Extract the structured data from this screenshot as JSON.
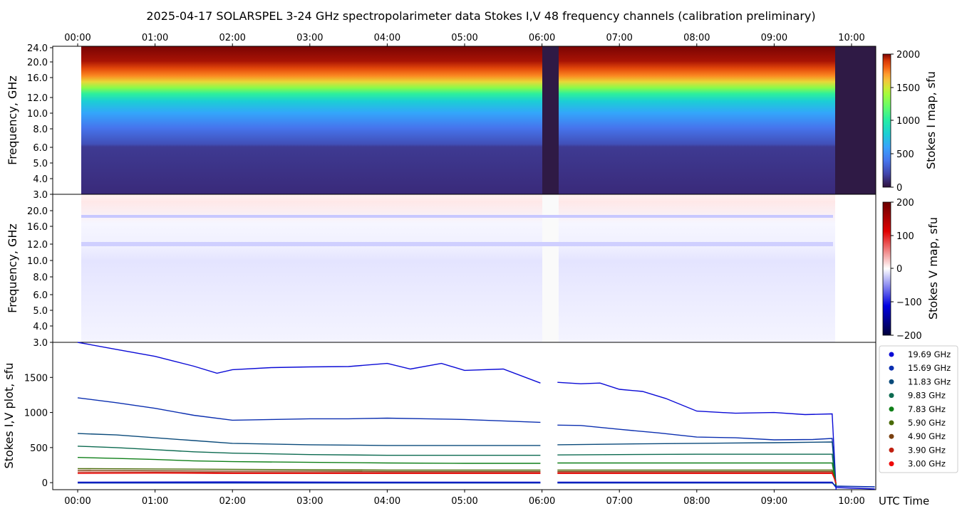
{
  "title": "2025-04-17  SOLARSPEL  3-24 GHz spectropolarimeter data   Stokes I,V   48 frequency channels   (calibration preliminary)",
  "time_ticks": [
    "00:00",
    "01:00",
    "02:00",
    "03:00",
    "04:00",
    "05:00",
    "06:00",
    "07:00",
    "08:00",
    "09:00",
    "10:00"
  ],
  "x_axis_label": "UTC Time",
  "panels": {
    "stokes_i": {
      "ylabel": "Frequency, GHz",
      "yticks": [
        "24.0",
        "20.0",
        "16.0",
        "12.0",
        "10.0",
        "8.0",
        "6.0",
        "5.0",
        "4.0",
        "3.0"
      ],
      "colorbar_label": "Stokes I map, sfu",
      "colorbar_ticks": [
        "2000",
        "1500",
        "1000",
        "500",
        "0"
      ]
    },
    "stokes_v": {
      "ylabel": "Frequency, GHz",
      "yticks": [
        "20.0",
        "16.0",
        "12.0",
        "10.0",
        "8.0",
        "6.0",
        "5.0",
        "4.0",
        "3.0"
      ],
      "colorbar_label": "Stokes V map, sfu",
      "colorbar_ticks": [
        "200",
        "100",
        "0",
        "−100",
        "−200"
      ]
    },
    "plot": {
      "ylabel": "Stokes I,V plot, sfu",
      "yticks": [
        "1500",
        "1000",
        "500",
        "0"
      ]
    }
  },
  "legend": [
    {
      "label": "19.69 GHz",
      "color": "#0a0ad6"
    },
    {
      "label": "15.69 GHz",
      "color": "#0b2fb0"
    },
    {
      "label": "11.83 GHz",
      "color": "#0a4a7a"
    },
    {
      "label": "9.83 GHz",
      "color": "#0c6a50"
    },
    {
      "label": "7.83 GHz",
      "color": "#0f7f18"
    },
    {
      "label": "5.90 GHz",
      "color": "#4a6a08"
    },
    {
      "label": "4.90 GHz",
      "color": "#7a4010"
    },
    {
      "label": "3.90 GHz",
      "color": "#c02010"
    },
    {
      "label": "3.00 GHz",
      "color": "#ee0a0a"
    }
  ],
  "chart_data": [
    {
      "type": "heatmap",
      "name": "Stokes I",
      "colorbar": "Stokes I map, sfu",
      "zlim": [
        0,
        2000
      ],
      "ylim_ghz": [
        3.0,
        24.0
      ],
      "xlim_hours": [
        0.0,
        10.3
      ],
      "data_start_hours": 0.04,
      "data_end_hours": 9.8,
      "gaps_hours": [
        [
          5.98,
          6.2
        ],
        [
          9.8,
          10.3
        ]
      ]
    },
    {
      "type": "heatmap",
      "name": "Stokes V",
      "colorbar": "Stokes V map, sfu",
      "zlim": [
        -200,
        200
      ],
      "ylim_ghz": [
        3.0,
        22.0
      ],
      "xlim_hours": [
        0.0,
        10.3
      ]
    },
    {
      "type": "line",
      "ylabel": "Stokes I,V plot, sfu",
      "ylim": [
        -100,
        2000
      ],
      "xlim_hours": [
        0.0,
        10.3
      ],
      "series": [
        {
          "name": "19.69 GHz",
          "color": "#0a0ad6",
          "x": [
            0.0,
            0.5,
            1.0,
            1.5,
            1.8,
            2.0,
            2.5,
            3.0,
            3.5,
            4.0,
            4.3,
            4.7,
            5.0,
            5.5,
            5.98,
            6.2,
            6.5,
            6.75,
            7.0,
            7.3,
            7.6,
            8.0,
            8.5,
            9.0,
            9.4,
            9.75,
            9.8
          ],
          "y": [
            2000,
            1900,
            1800,
            1660,
            1560,
            1610,
            1640,
            1650,
            1655,
            1700,
            1620,
            1700,
            1600,
            1620,
            1420,
            1430,
            1410,
            1420,
            1330,
            1300,
            1200,
            1020,
            990,
            1000,
            970,
            980,
            -100
          ]
        },
        {
          "name": "15.69 GHz",
          "color": "#0b2fb0",
          "x": [
            0.0,
            0.5,
            1.0,
            1.5,
            2.0,
            2.5,
            3.0,
            3.5,
            4.0,
            4.5,
            5.0,
            5.5,
            5.98,
            6.2,
            6.5,
            7.0,
            7.5,
            8.0,
            8.5,
            9.0,
            9.5,
            9.75,
            9.8
          ],
          "y": [
            1210,
            1140,
            1060,
            960,
            890,
            900,
            910,
            910,
            920,
            910,
            900,
            880,
            860,
            820,
            815,
            760,
            710,
            650,
            640,
            610,
            615,
            630,
            -80
          ]
        },
        {
          "name": "11.83 GHz",
          "color": "#0a4a7a",
          "x": [
            0.0,
            0.5,
            1.0,
            1.5,
            2.0,
            3.0,
            4.0,
            5.0,
            5.98,
            6.2,
            7.0,
            8.0,
            9.0,
            9.75,
            9.8
          ],
          "y": [
            700,
            680,
            640,
            600,
            560,
            540,
            530,
            530,
            530,
            540,
            550,
            560,
            570,
            580,
            -60
          ]
        },
        {
          "name": "9.83 GHz",
          "color": "#0c6a50",
          "x": [
            0.0,
            0.5,
            1.0,
            1.5,
            2.0,
            3.0,
            4.0,
            5.0,
            5.98,
            6.2,
            7.0,
            8.0,
            9.0,
            9.75,
            9.8
          ],
          "y": [
            520,
            500,
            470,
            440,
            420,
            400,
            390,
            390,
            390,
            395,
            400,
            405,
            405,
            405,
            -60
          ]
        },
        {
          "name": "7.83 GHz",
          "color": "#0f7f18",
          "x": [
            0.0,
            0.5,
            1.0,
            1.5,
            2.0,
            3.0,
            4.0,
            5.0,
            5.98,
            6.2,
            7.0,
            8.0,
            9.0,
            9.75,
            9.8
          ],
          "y": [
            360,
            345,
            330,
            310,
            300,
            290,
            280,
            275,
            275,
            280,
            280,
            280,
            280,
            280,
            -40
          ]
        },
        {
          "name": "5.90 GHz",
          "color": "#4a6a08",
          "x": [
            0.0,
            1.0,
            2.0,
            3.0,
            4.0,
            5.0,
            5.98,
            6.2,
            7.0,
            8.0,
            9.0,
            9.75,
            9.8
          ],
          "y": [
            200,
            195,
            190,
            185,
            180,
            180,
            180,
            180,
            180,
            180,
            180,
            180,
            -30
          ]
        },
        {
          "name": "4.90 GHz",
          "color": "#7a4010",
          "x": [
            0.0,
            1.0,
            2.0,
            3.0,
            4.0,
            5.0,
            5.98,
            6.2,
            7.0,
            8.0,
            9.0,
            9.75,
            9.8
          ],
          "y": [
            175,
            170,
            165,
            165,
            160,
            160,
            160,
            160,
            160,
            160,
            160,
            160,
            -20
          ]
        },
        {
          "name": "3.90 GHz",
          "color": "#c02010",
          "x": [
            0.0,
            1.0,
            2.0,
            3.0,
            4.0,
            5.0,
            5.98,
            6.2,
            7.0,
            8.0,
            9.0,
            9.75,
            9.8
          ],
          "y": [
            150,
            150,
            145,
            145,
            145,
            145,
            145,
            145,
            145,
            145,
            145,
            145,
            -10
          ]
        },
        {
          "name": "3.00 GHz",
          "color": "#ee0a0a",
          "x": [
            0.0,
            1.0,
            2.0,
            3.0,
            4.0,
            5.0,
            5.98,
            6.2,
            7.0,
            8.0,
            9.0,
            9.75,
            9.8
          ],
          "y": [
            130,
            135,
            130,
            130,
            130,
            130,
            130,
            130,
            130,
            130,
            130,
            130,
            0
          ]
        },
        {
          "color": "#0a0ad6",
          "x": [
            0.0,
            2.0,
            4.0,
            5.98,
            6.2,
            8.0,
            9.75,
            9.8,
            10.3
          ],
          "y": [
            5,
            10,
            5,
            5,
            5,
            5,
            5,
            -70,
            -90
          ]
        },
        {
          "color": "#0b2fb0",
          "x": [
            0.0,
            2.0,
            4.0,
            5.98,
            6.2,
            8.0,
            9.75,
            9.8,
            10.3
          ],
          "y": [
            -5,
            -5,
            -5,
            -5,
            -5,
            -5,
            -5,
            -50,
            -60
          ]
        }
      ]
    }
  ]
}
